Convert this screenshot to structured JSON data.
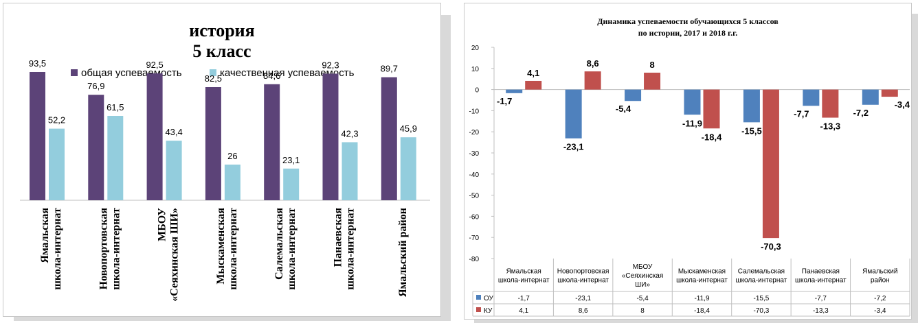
{
  "chart_data": [
    {
      "type": "bar",
      "title": "история",
      "subtitle": "5 класс",
      "categories": [
        "Ямальская школа-интернат",
        "Новопортовская школа-интернат",
        "МБОУ «Сеяхинская ШИ»",
        "Мыскаменская школа-интернат",
        "Салемальская школа-интернат",
        "Панаевская школа-интернат",
        "Ямальский район"
      ],
      "series": [
        {
          "name": "общая успеваемость",
          "values": [
            93.5,
            76.9,
            92.5,
            82.5,
            84.6,
            92.3,
            89.7
          ],
          "labels": [
            "93,5",
            "76,9",
            "92,5",
            "82,5",
            "84,6",
            "92,3",
            "89,7"
          ],
          "color": "#5c4378"
        },
        {
          "name": "качественная успеваемость",
          "values": [
            52.2,
            61.5,
            43.4,
            26,
            23.1,
            42.3,
            45.9
          ],
          "labels": [
            "52,2",
            "61,5",
            "43,4",
            "26",
            "23,1",
            "42,3",
            "45,9"
          ],
          "color": "#93cddd"
        }
      ],
      "ylim": [
        0,
        100
      ],
      "legend": "top",
      "grid": false
    },
    {
      "type": "bar",
      "title": "Динамика успеваемости обучающихся  5 классов",
      "subtitle": "по истории,  2017 и 2018 г.г.",
      "categories": [
        "Ямальская школа-интернат",
        "Новопортовская школа-интернат",
        "МБОУ «Сеяхинская ШИ»",
        "Мыскаменская школа-интернат",
        "Салемальская школа-интернат",
        "Панаевская школа-интернат",
        "Ямальский район"
      ],
      "series": [
        {
          "name": "ОУ",
          "values": [
            -1.7,
            -23.1,
            -5.4,
            -11.9,
            -15.5,
            -7.7,
            -7.2
          ],
          "labels": [
            "-1,7",
            "-23,1",
            "-5,4",
            "-11,9",
            "-15,5",
            "-7,7",
            "-7,2"
          ],
          "color": "#4f81bd"
        },
        {
          "name": "КУ",
          "values": [
            4.1,
            8.6,
            8,
            -18.4,
            -70.3,
            -13.3,
            -3.4
          ],
          "labels": [
            "4,1",
            "8,6",
            "8",
            "-18,4",
            "-70,3",
            "-13,3",
            "-3,4"
          ],
          "color": "#c0504d"
        }
      ],
      "ylim": [
        -80,
        20
      ],
      "yticks": [
        20,
        10,
        0,
        -10,
        -20,
        -30,
        -40,
        -50,
        -60,
        -70,
        -80
      ],
      "legend": "data-table",
      "grid": false
    }
  ],
  "right_table": {
    "categories": [
      [
        "Ямальская",
        "школа-интернат"
      ],
      [
        "Новопортовская",
        "школа-интернат"
      ],
      [
        "МБОУ",
        "«Сеяхинская",
        "ШИ»"
      ],
      [
        "Мыскаменская",
        "школа-интернат"
      ],
      [
        "Салемальская",
        "школа-интернат"
      ],
      [
        "Панаевская",
        "школа-интернат"
      ],
      [
        "Ямальский",
        "район"
      ]
    ]
  },
  "left_labels": [
    [
      "Ямальская",
      "школа-интернат"
    ],
    [
      "Новопортовская",
      "школа-интернат"
    ],
    [
      "МБОУ",
      "«Сеяхинская ШИ»"
    ],
    [
      "Мыскаменская",
      "школа-интернат"
    ],
    [
      "Салемальская",
      "школа-интернат"
    ],
    [
      "Панаевская",
      "школа-интернат"
    ],
    [
      "Ямальский район"
    ]
  ]
}
